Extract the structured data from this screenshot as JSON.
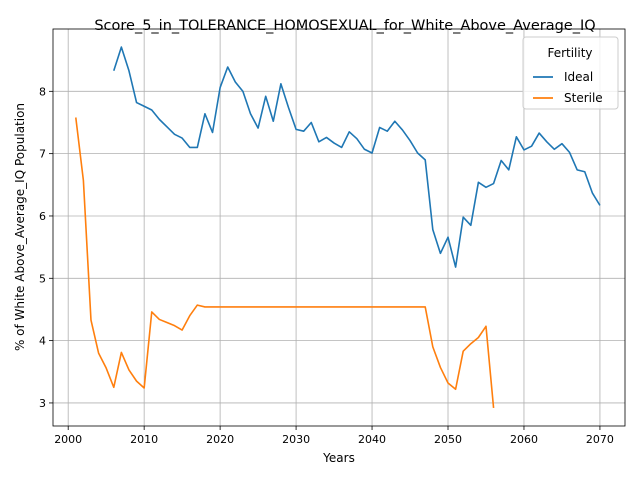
{
  "chart_data": {
    "type": "line",
    "title": "Score_5_in_TOLERANCE_HOMOSEXUAL_for_White_Above_Average_IQ",
    "xlabel": "Years",
    "ylabel": "% of White Above_Average_IQ Population",
    "xlim": [
      1998,
      2073.3
    ],
    "ylim": [
      2.63,
      9.0
    ],
    "xticks": [
      2000,
      2010,
      2020,
      2030,
      2040,
      2050,
      2060,
      2070
    ],
    "yticks": [
      3,
      4,
      5,
      6,
      7,
      8
    ],
    "grid": true,
    "legend": {
      "title": "Fertility",
      "position": "top-right"
    },
    "series": [
      {
        "name": "Ideal",
        "color": "#1f77b4",
        "x": [
          2006,
          2007,
          2008,
          2009,
          2010,
          2011,
          2012,
          2013,
          2014,
          2015,
          2016,
          2017,
          2018,
          2019,
          2020,
          2021,
          2022,
          2023,
          2024,
          2025,
          2026,
          2027,
          2028,
          2029,
          2030,
          2031,
          2032,
          2033,
          2034,
          2035,
          2036,
          2037,
          2038,
          2039,
          2040,
          2041,
          2042,
          2043,
          2044,
          2045,
          2046,
          2047,
          2048,
          2049,
          2050,
          2051,
          2052,
          2053,
          2054,
          2055,
          2056,
          2057,
          2058,
          2059,
          2060,
          2061,
          2062,
          2063,
          2064,
          2065,
          2066,
          2067,
          2068,
          2069,
          2070
        ],
        "y": [
          8.33,
          8.71,
          8.33,
          7.82,
          7.76,
          7.7,
          7.55,
          7.43,
          7.31,
          7.25,
          7.1,
          7.1,
          7.64,
          7.34,
          8.06,
          8.39,
          8.15,
          8.0,
          7.64,
          7.41,
          7.92,
          7.52,
          8.12,
          7.74,
          7.39,
          7.36,
          7.5,
          7.19,
          7.26,
          7.17,
          7.1,
          7.35,
          7.24,
          7.07,
          7.01,
          7.42,
          7.36,
          7.52,
          7.38,
          7.21,
          7.01,
          6.9,
          5.78,
          5.4,
          5.66,
          5.18,
          5.98,
          5.85,
          6.54,
          6.46,
          6.52,
          6.89,
          6.74,
          7.27,
          7.06,
          7.12,
          7.33,
          7.19,
          7.07,
          7.16,
          7.02,
          6.74,
          6.71,
          6.37,
          6.17
        ]
      },
      {
        "name": "Sterile",
        "color": "#ff7f0e",
        "x": [
          2001,
          2002,
          2003,
          2004,
          2005,
          2006,
          2007,
          2008,
          2009,
          2010,
          2011,
          2012,
          2013,
          2014,
          2015,
          2016,
          2017,
          2018,
          2019,
          2020,
          2025,
          2030,
          2035,
          2040,
          2045,
          2047,
          2048,
          2049,
          2050,
          2051,
          2052,
          2053,
          2054,
          2055,
          2056
        ],
        "y": [
          7.58,
          6.57,
          4.33,
          3.8,
          3.56,
          3.25,
          3.81,
          3.53,
          3.35,
          3.24,
          4.46,
          4.34,
          4.29,
          4.24,
          4.17,
          4.4,
          4.57,
          4.54,
          4.54,
          4.54,
          4.54,
          4.54,
          4.54,
          4.54,
          4.54,
          4.54,
          3.9,
          3.57,
          3.32,
          3.22,
          3.83,
          3.95,
          4.05,
          4.23,
          2.92
        ]
      }
    ]
  }
}
